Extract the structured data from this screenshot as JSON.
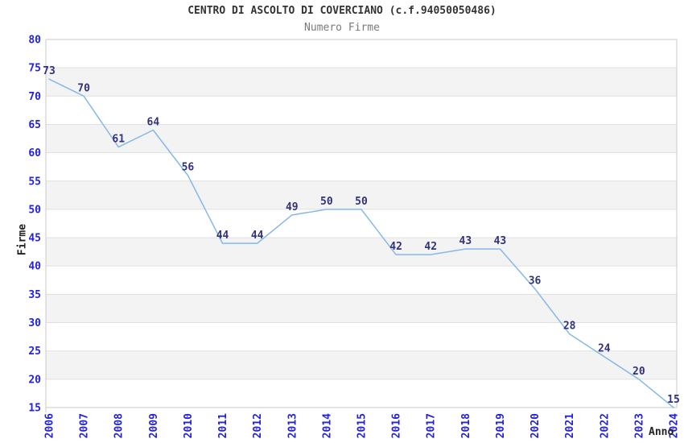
{
  "chart_data": {
    "type": "line",
    "title": "CENTRO DI ASCOLTO DI COVERCIANO (c.f.94050050486)",
    "subtitle": "Numero Firme",
    "xlabel": "Anno",
    "ylabel": "Firme",
    "categories": [
      "2006",
      "2007",
      "2008",
      "2009",
      "2010",
      "2011",
      "2012",
      "2013",
      "2014",
      "2015",
      "2016",
      "2017",
      "2018",
      "2019",
      "2020",
      "2021",
      "2022",
      "2023",
      "2024"
    ],
    "values": [
      73,
      70,
      61,
      64,
      56,
      44,
      44,
      49,
      50,
      50,
      42,
      42,
      43,
      43,
      36,
      28,
      24,
      20,
      15
    ],
    "ylim": [
      15,
      80
    ],
    "y_ticks": [
      15,
      20,
      25,
      30,
      35,
      40,
      45,
      50,
      55,
      60,
      65,
      70,
      75,
      80
    ],
    "y_tick_step": 5,
    "grid": "horizontal gridlines with alternating gray bands",
    "legend": "none",
    "x_labels_rotation_deg": -90,
    "colors": {
      "line": "#85b8ea",
      "tick_label": "#2222dd",
      "value_label": "#32327a",
      "band_gray": "#f3f3f3",
      "gridline": "#e0e0e0",
      "border": "#c8c8c8",
      "title": "#333333",
      "subtitle": "#7a7a7a",
      "axis_title": "#222222"
    }
  }
}
